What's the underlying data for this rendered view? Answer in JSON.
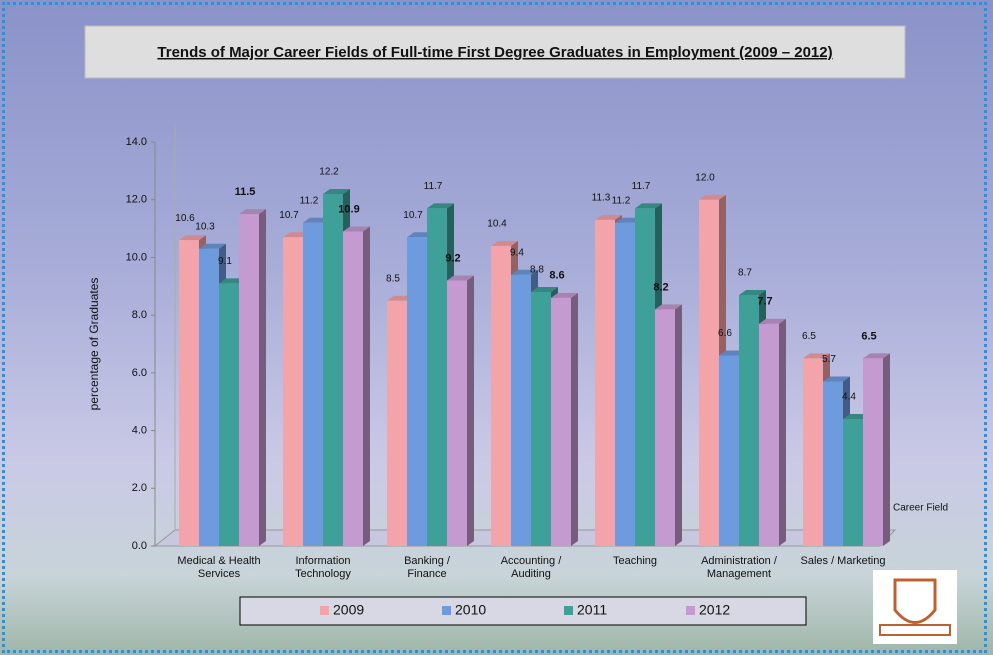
{
  "chart_data": {
    "type": "bar",
    "title": "Trends of Major Career Fields of Full-time First Degree Graduates in Employment (2009 – 2012)",
    "y_label": "percentage of Graduates",
    "x_label": "Career Field",
    "categories": [
      "Medical & Health\nServices",
      "Information\nTechnology",
      "Banking /\nFinance",
      "Accounting /\nAuditing",
      "Teaching",
      "Administration /\nManagement",
      "Sales / Marketing"
    ],
    "series": [
      {
        "name": "2009",
        "color": "#f3a3aa",
        "values": [
          10.6,
          10.7,
          8.5,
          10.4,
          11.3,
          12.0,
          6.5
        ],
        "value_labels": [
          "10.6",
          "10.7",
          "8.5",
          "10.4",
          "11.3",
          "12.0",
          "6.5"
        ]
      },
      {
        "name": "2010",
        "color": "#6e9ade",
        "values": [
          10.3,
          11.2,
          10.7,
          9.4,
          11.2,
          6.6,
          5.7
        ],
        "value_labels": [
          "10.3",
          "11.2",
          "10.7",
          "9.4",
          "11.2",
          "6.6",
          "5.7"
        ]
      },
      {
        "name": "2011",
        "color": "#3f9f99",
        "values": [
          9.1,
          12.2,
          11.7,
          8.8,
          11.7,
          8.7,
          4.4
        ],
        "value_labels": [
          "9.1",
          "12.2",
          "11.7",
          "8.8",
          "11.7",
          "8.7",
          "4.4"
        ]
      },
      {
        "name": "2012",
        "color": "#c49ad0",
        "values": [
          11.5,
          10.9,
          9.2,
          8.6,
          8.2,
          7.7,
          6.5
        ],
        "value_labels": [
          "11.5",
          "10.9",
          "9.2",
          "8.6",
          "8.2",
          "7.7",
          "6.5"
        ],
        "bold_labels": true
      }
    ],
    "ylim": [
      0,
      14
    ],
    "yticks": [
      {
        "value": 0,
        "label": "0.0"
      },
      {
        "value": 2,
        "label": "2.0"
      },
      {
        "value": 4,
        "label": "4.0"
      },
      {
        "value": 6,
        "label": "6.0"
      },
      {
        "value": 8,
        "label": "8.0"
      },
      {
        "value": 10,
        "label": "10.0"
      },
      {
        "value": 12,
        "label": "12.0"
      },
      {
        "value": 14,
        "label": "14.0"
      }
    ],
    "grid": false,
    "legend": "bottom"
  }
}
